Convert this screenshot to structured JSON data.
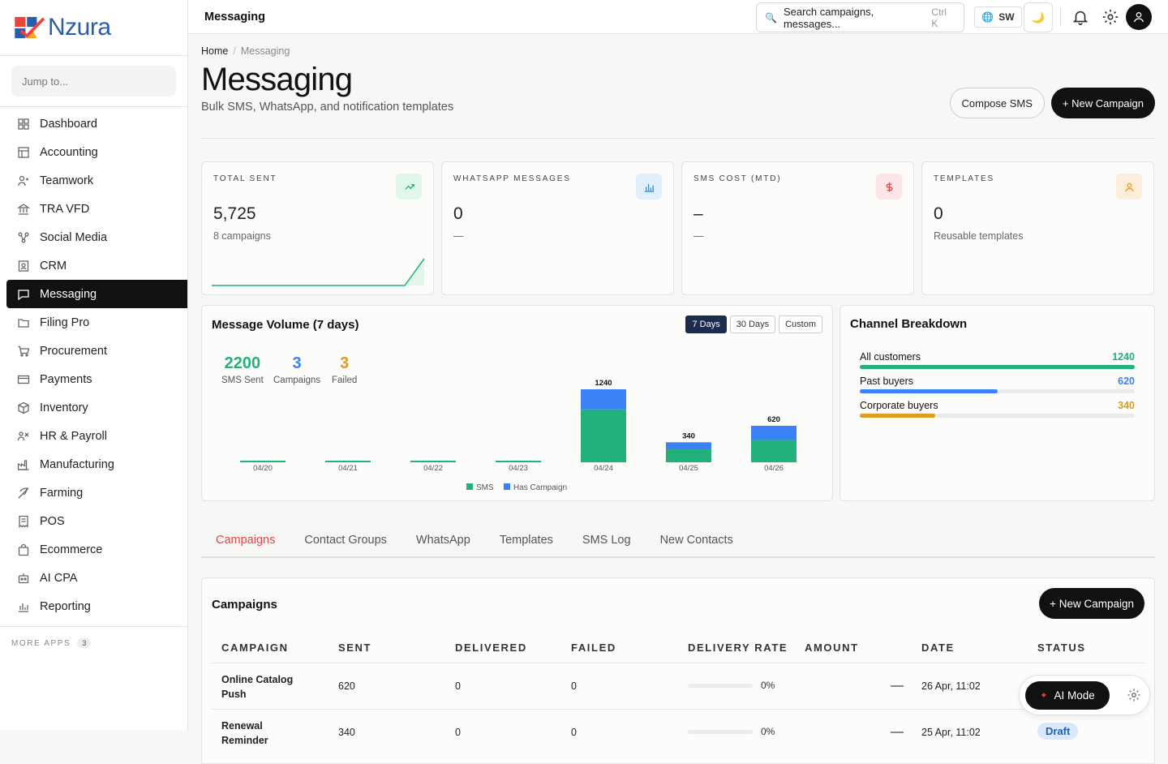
{
  "brand": {
    "name": "Nzura"
  },
  "sidebar": {
    "jump_placeholder": "Jump to...",
    "items": [
      {
        "label": "Dashboard",
        "icon": "grid-icon"
      },
      {
        "label": "Accounting",
        "icon": "ledger-icon"
      },
      {
        "label": "Teamwork",
        "icon": "team-icon"
      },
      {
        "label": "TRA VFD",
        "icon": "bank-icon"
      },
      {
        "label": "Social Media",
        "icon": "share-icon"
      },
      {
        "label": "CRM",
        "icon": "contact-icon"
      },
      {
        "label": "Messaging",
        "icon": "message-icon"
      },
      {
        "label": "Filing Pro",
        "icon": "folder-icon"
      },
      {
        "label": "Procurement",
        "icon": "cart-icon"
      },
      {
        "label": "Payments",
        "icon": "card-icon"
      },
      {
        "label": "Inventory",
        "icon": "box-icon"
      },
      {
        "label": "HR & Payroll",
        "icon": "people-icon"
      },
      {
        "label": "Manufacturing",
        "icon": "factory-icon"
      },
      {
        "label": "Farming",
        "icon": "leaf-icon"
      },
      {
        "label": "POS",
        "icon": "receipt-icon"
      },
      {
        "label": "Ecommerce",
        "icon": "bag-icon"
      },
      {
        "label": "AI CPA",
        "icon": "robot-icon"
      },
      {
        "label": "Reporting",
        "icon": "chart-icon"
      }
    ],
    "active": "Messaging",
    "more_label": "MORE APPS",
    "more_count": "3"
  },
  "topbar": {
    "title": "Messaging",
    "search_placeholder": "Search campaigns, messages...",
    "search_shortcut": "Ctrl K",
    "lang": "SW"
  },
  "breadcrumb": {
    "home": "Home",
    "current": "Messaging"
  },
  "page": {
    "title": "Messaging",
    "subtitle": "Bulk SMS, WhatsApp, and notification templates",
    "compose_label": "Compose SMS",
    "new_campaign_label": "+ New Campaign"
  },
  "kpis": [
    {
      "label": "TOTAL SENT",
      "value": "5,725",
      "sub": "8 campaigns",
      "color": "#22b07d",
      "bg": "#e3f6ec"
    },
    {
      "label": "WHATSAPP MESSAGES",
      "value": "0",
      "sub": "—",
      "color": "#2a8fd8",
      "bg": "#e0f0fb"
    },
    {
      "label": "SMS COST (MTD)",
      "value": "–",
      "sub": "—",
      "color": "#e0454f",
      "bg": "#fde4e6"
    },
    {
      "label": "TEMPLATES",
      "value": "0",
      "sub": "Reusable templates",
      "color": "#e09a3a",
      "bg": "#fdeedb"
    }
  ],
  "volume": {
    "title": "Message Volume (7 days)",
    "ranges": [
      "7 Days",
      "30 Days",
      "Custom"
    ],
    "active_range": "7 Days",
    "stats": [
      {
        "value": "2200",
        "label": "SMS Sent",
        "color": "#22b07d"
      },
      {
        "value": "3",
        "label": "Campaigns",
        "color": "#3b82f6"
      },
      {
        "value": "3",
        "label": "Failed",
        "color": "#e09a1c"
      }
    ]
  },
  "chart_data": {
    "type": "bar",
    "stacked": true,
    "categories": [
      "04/20",
      "04/21",
      "04/22",
      "04/23",
      "04/24",
      "04/25",
      "04/26"
    ],
    "series": [
      {
        "name": "SMS",
        "color": "#22b07d",
        "values": [
          0,
          0,
          0,
          0,
          900,
          220,
          380
        ]
      },
      {
        "name": "Has Campaign",
        "color": "#3b82f6",
        "values": [
          0,
          0,
          0,
          0,
          340,
          120,
          240
        ]
      }
    ],
    "data_labels": [
      "",
      "",
      "",
      "",
      "1240",
      "340",
      "620"
    ],
    "ylim": [
      0,
      1240
    ],
    "legend": "bottom"
  },
  "channels": {
    "title": "Channel Breakdown",
    "max": 1240,
    "rows": [
      {
        "label": "All customers",
        "value": "1240",
        "num": 1240,
        "color": "#22b07d"
      },
      {
        "label": "Past buyers",
        "value": "620",
        "num": 620,
        "color": "#3b82f6"
      },
      {
        "label": "Corporate buyers",
        "value": "340",
        "num": 340,
        "color": "#e09a1c"
      }
    ]
  },
  "tabs": [
    "Campaigns",
    "Contact Groups",
    "WhatsApp",
    "Templates",
    "SMS Log",
    "New Contacts"
  ],
  "active_tab": "Campaigns",
  "campaigns": {
    "title": "Campaigns",
    "new_label": "+ New Campaign",
    "columns": [
      "CAMPAIGN",
      "SENT",
      "DELIVERED",
      "FAILED",
      "DELIVERY RATE",
      "AMOUNT",
      "DATE",
      "STATUS"
    ],
    "rows": [
      {
        "name": "Online Catalog Push",
        "sent": "620",
        "delivered": "0",
        "failed": "0",
        "rate": "0%",
        "amount": "—",
        "date": "26 Apr, 11:02",
        "status": ""
      },
      {
        "name": "Renewal Reminder",
        "sent": "340",
        "delivered": "0",
        "failed": "0",
        "rate": "0%",
        "amount": "—",
        "date": "25 Apr, 11:02",
        "status": "Draft"
      }
    ]
  },
  "ai": {
    "label": "AI Mode"
  }
}
